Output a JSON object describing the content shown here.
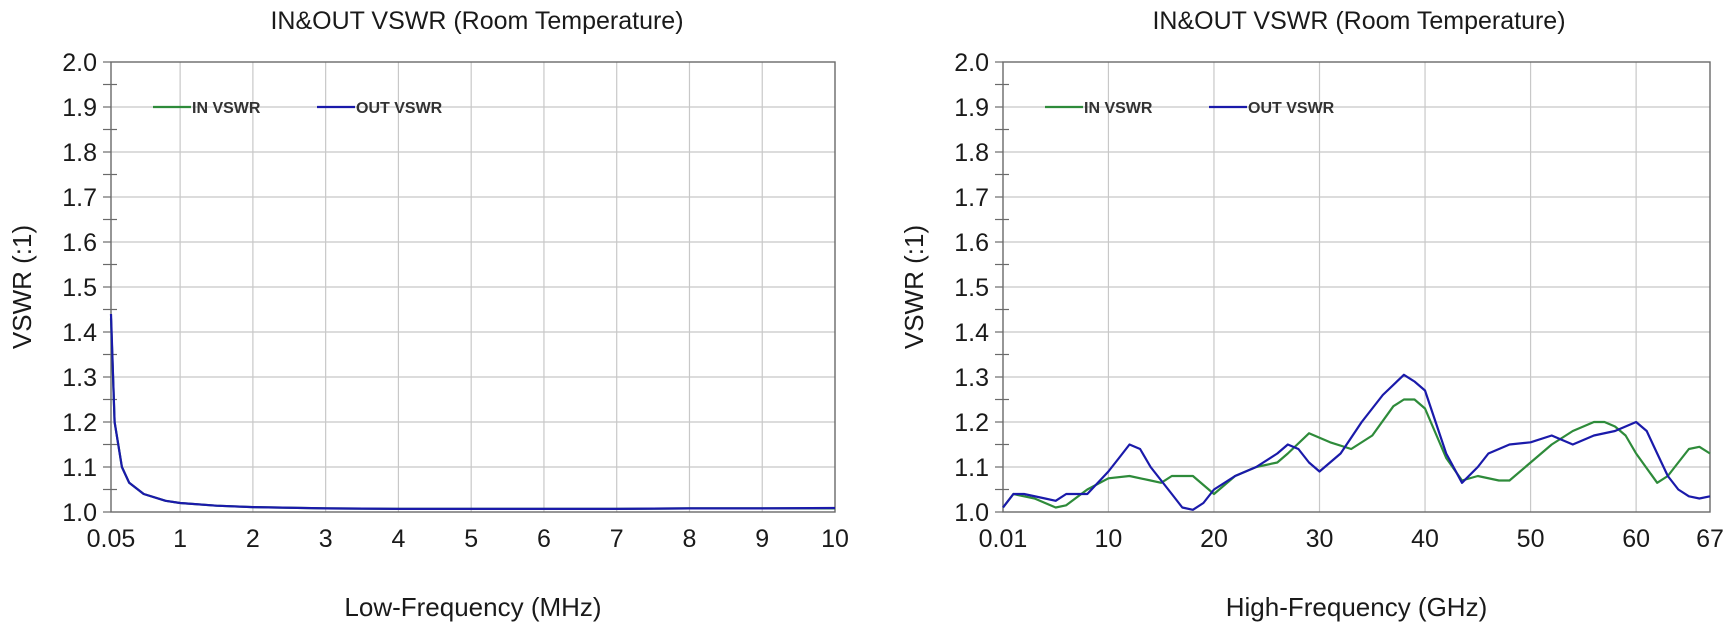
{
  "chart_data": [
    {
      "type": "line",
      "title": "IN&OUT VSWR (Room Temperature)",
      "xlabel": "Low-Frequency (MHz)",
      "ylabel": "VSWR (:1)",
      "xlim": [
        0.05,
        10
      ],
      "ylim": [
        1.0,
        2.0
      ],
      "xticks": [
        0.05,
        1,
        2,
        3,
        4,
        5,
        6,
        7,
        8,
        9,
        10
      ],
      "xtick_labels": [
        "0.05",
        "1",
        "2",
        "3",
        "4",
        "5",
        "6",
        "7",
        "8",
        "9",
        "10"
      ],
      "yticks": [
        1.0,
        1.1,
        1.2,
        1.3,
        1.4,
        1.5,
        1.6,
        1.7,
        1.8,
        1.9,
        2.0
      ],
      "ytick_labels": [
        "1.0",
        "1.1",
        "1.2",
        "1.3",
        "1.4",
        "1.5",
        "1.6",
        "1.7",
        "1.8",
        "1.9",
        "2.0"
      ],
      "grid": true,
      "legend": "top-left",
      "series": [
        {
          "name": "IN VSWR",
          "color": "#2e8b3a",
          "x": [
            0.05,
            0.1,
            0.2,
            0.3,
            0.5,
            0.8,
            1,
            1.5,
            2,
            3,
            4,
            5,
            6,
            7,
            8,
            9,
            10
          ],
          "y": [
            1.43,
            1.2,
            1.1,
            1.065,
            1.04,
            1.025,
            1.02,
            1.014,
            1.011,
            1.008,
            1.007,
            1.007,
            1.007,
            1.007,
            1.008,
            1.008,
            1.008
          ]
        },
        {
          "name": "OUT VSWR",
          "color": "#1a1aaa",
          "x": [
            0.05,
            0.1,
            0.2,
            0.3,
            0.5,
            0.8,
            1,
            1.5,
            2,
            3,
            4,
            5,
            6,
            7,
            8,
            9,
            10
          ],
          "y": [
            1.44,
            1.2,
            1.1,
            1.065,
            1.04,
            1.025,
            1.02,
            1.014,
            1.011,
            1.008,
            1.007,
            1.007,
            1.007,
            1.007,
            1.008,
            1.008,
            1.009
          ]
        }
      ]
    },
    {
      "type": "line",
      "title": "IN&OUT VSWR (Room Temperature)",
      "xlabel": "High-Frequency (GHz)",
      "ylabel": "VSWR (:1)",
      "xlim": [
        0.01,
        67
      ],
      "ylim": [
        1.0,
        2.0
      ],
      "xticks": [
        0.01,
        10,
        20,
        30,
        40,
        50,
        60,
        67
      ],
      "xtick_labels": [
        "0.01",
        "10",
        "20",
        "30",
        "40",
        "50",
        "60",
        "67"
      ],
      "yticks": [
        1.0,
        1.1,
        1.2,
        1.3,
        1.4,
        1.5,
        1.6,
        1.7,
        1.8,
        1.9,
        2.0
      ],
      "ytick_labels": [
        "1.0",
        "1.1",
        "1.2",
        "1.3",
        "1.4",
        "1.5",
        "1.6",
        "1.7",
        "1.8",
        "1.9",
        "2.0"
      ],
      "grid": true,
      "legend": "top-left",
      "series": [
        {
          "name": "IN VSWR",
          "color": "#2e8b3a",
          "x": [
            0.01,
            1,
            2,
            3,
            4,
            5,
            6,
            8,
            10,
            12,
            14,
            15,
            16,
            18,
            20,
            22,
            24,
            26,
            27,
            29,
            31,
            33,
            35,
            37,
            38,
            39,
            40,
            42,
            43.5,
            45,
            47,
            48,
            50,
            52,
            54,
            56,
            57,
            58,
            59,
            60,
            62,
            63,
            64,
            65,
            66,
            67
          ],
          "y": [
            1.01,
            1.04,
            1.035,
            1.03,
            1.02,
            1.01,
            1.015,
            1.05,
            1.075,
            1.08,
            1.07,
            1.065,
            1.08,
            1.08,
            1.04,
            1.08,
            1.1,
            1.11,
            1.13,
            1.175,
            1.155,
            1.14,
            1.17,
            1.235,
            1.25,
            1.25,
            1.23,
            1.12,
            1.07,
            1.08,
            1.07,
            1.07,
            1.11,
            1.15,
            1.18,
            1.2,
            1.2,
            1.19,
            1.17,
            1.13,
            1.065,
            1.08,
            1.11,
            1.14,
            1.145,
            1.13
          ]
        },
        {
          "name": "OUT VSWR",
          "color": "#1a1aaa",
          "x": [
            0.01,
            1,
            2,
            4,
            5,
            6,
            8,
            10,
            11,
            12,
            13,
            14,
            15,
            16,
            17,
            18,
            19,
            20,
            22,
            24,
            26,
            27,
            28,
            29,
            30,
            32,
            34,
            36,
            38,
            39,
            40,
            41,
            42,
            43.5,
            45,
            46,
            48,
            50,
            52,
            53,
            54,
            56,
            58,
            60,
            61,
            62,
            63,
            64,
            65,
            66,
            67
          ],
          "y": [
            1.01,
            1.04,
            1.04,
            1.03,
            1.025,
            1.04,
            1.04,
            1.09,
            1.12,
            1.15,
            1.14,
            1.1,
            1.07,
            1.04,
            1.01,
            1.005,
            1.02,
            1.05,
            1.08,
            1.1,
            1.13,
            1.15,
            1.14,
            1.11,
            1.09,
            1.13,
            1.2,
            1.26,
            1.305,
            1.29,
            1.27,
            1.2,
            1.13,
            1.065,
            1.1,
            1.13,
            1.15,
            1.155,
            1.17,
            1.16,
            1.15,
            1.17,
            1.18,
            1.2,
            1.18,
            1.13,
            1.08,
            1.05,
            1.035,
            1.03,
            1.035
          ]
        }
      ]
    }
  ]
}
